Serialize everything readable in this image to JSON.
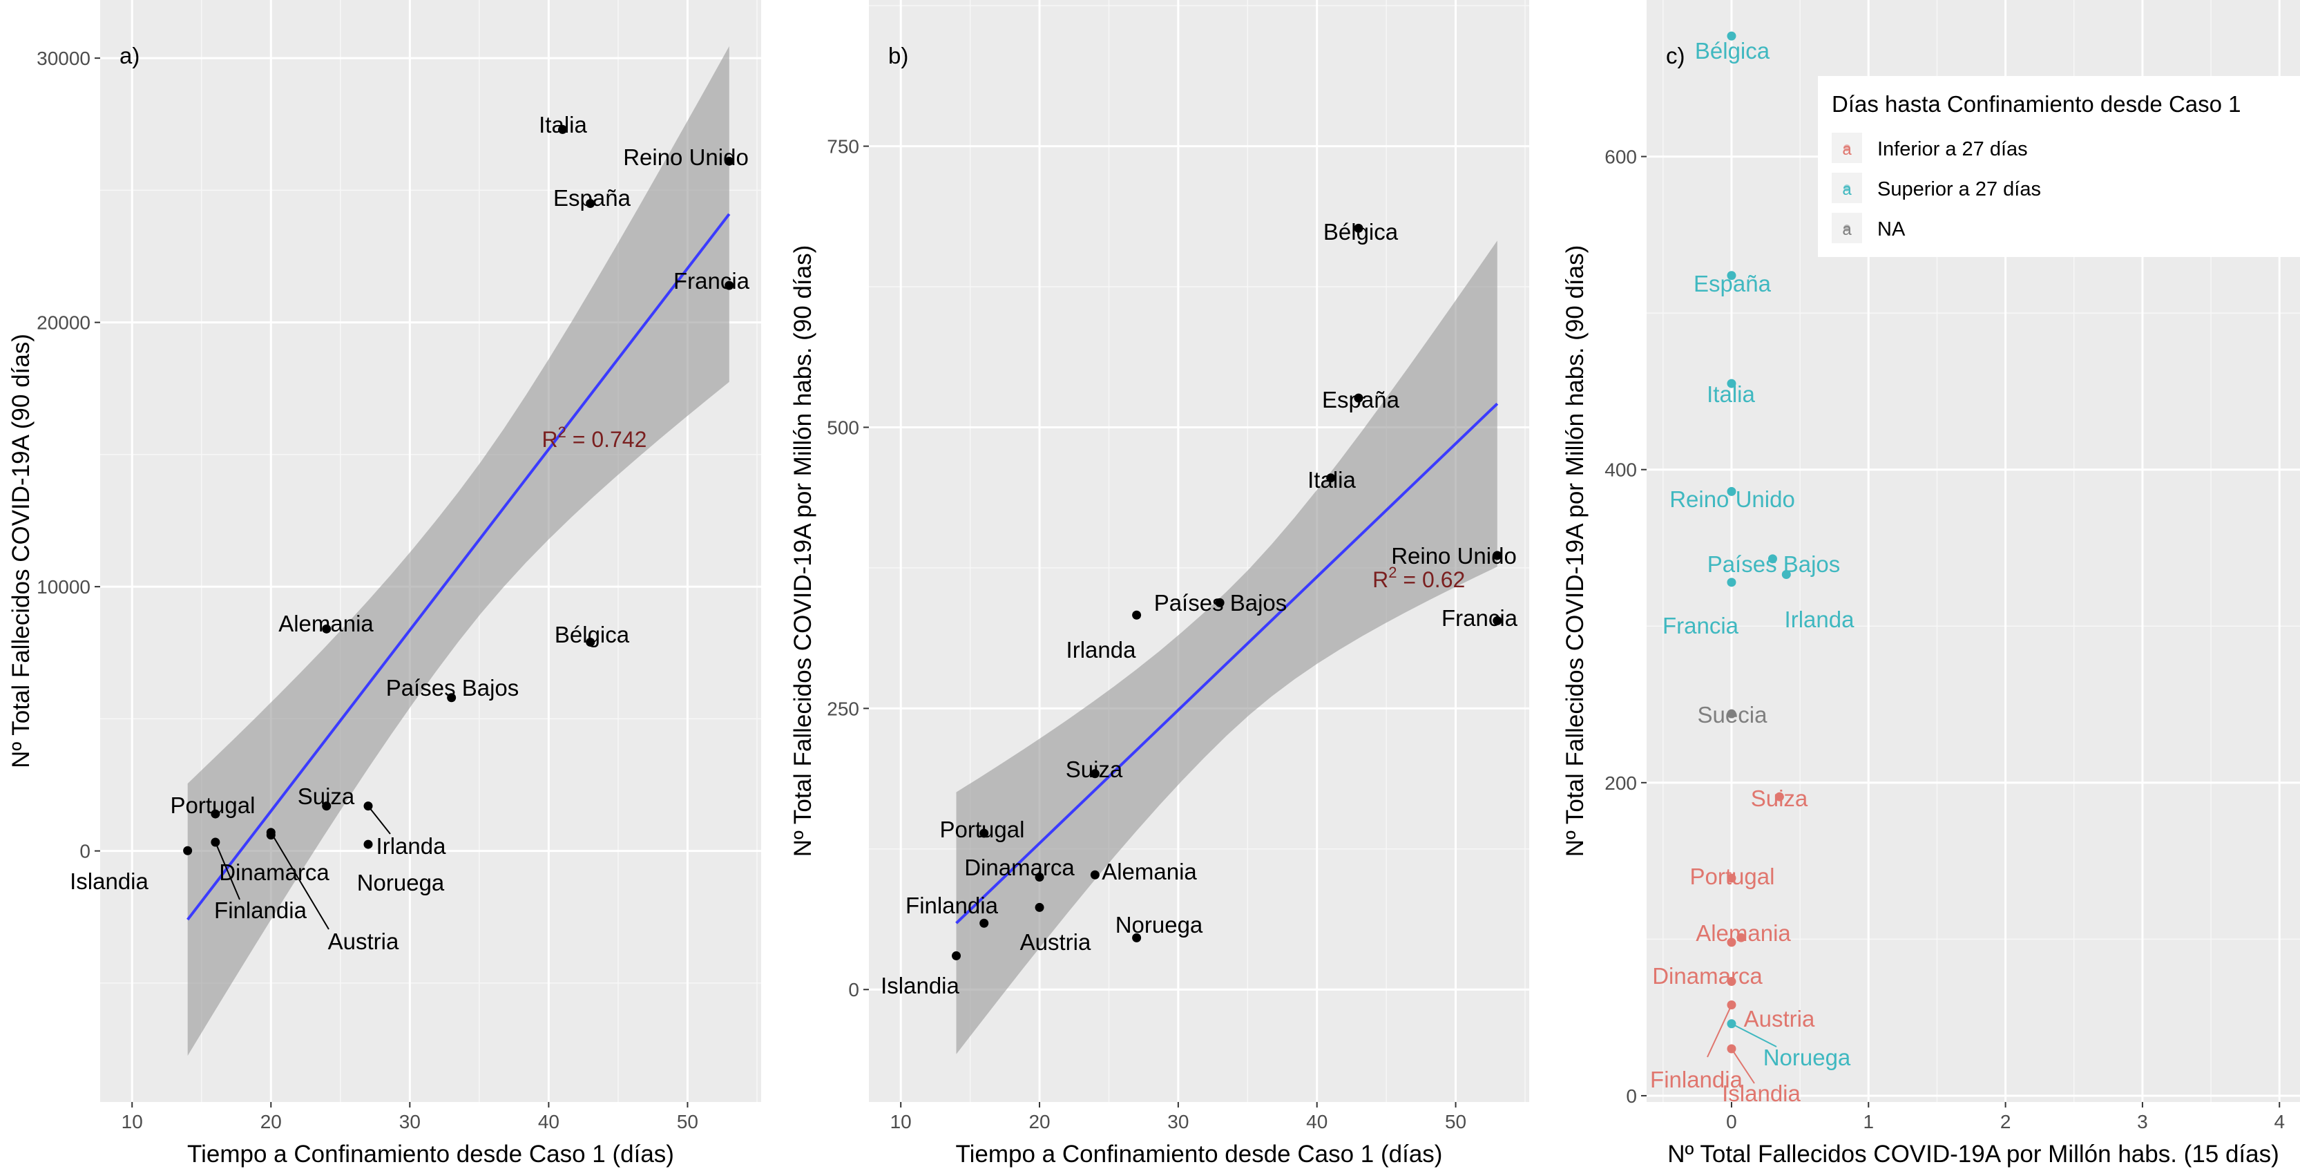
{
  "chart_data": [
    {
      "type": "scatter",
      "panel_label": "a)",
      "xlabel": "Tiempo a Confinamiento desde Caso 1 (días)",
      "ylabel": "Nº Total Fallecidos COVID-19A (90 días)",
      "xlim": [
        7.7,
        55.3
      ],
      "ylim": [
        -9500,
        32200
      ],
      "xticks": [
        10,
        20,
        30,
        40,
        50
      ],
      "yticks": [
        0,
        10000,
        20000,
        30000
      ],
      "ytick_labels": [
        "0",
        "10000",
        "20000",
        "30000"
      ],
      "points": [
        {
          "name": "Italia",
          "x": 41,
          "y": 27300
        },
        {
          "name": "Reino Unido",
          "x": 53,
          "y": 26100
        },
        {
          "name": "España",
          "x": 43,
          "y": 24500
        },
        {
          "name": "Francia",
          "x": 53,
          "y": 21400
        },
        {
          "name": "Alemania",
          "x": 24,
          "y": 8400
        },
        {
          "name": "Bélgica",
          "x": 43,
          "y": 7900
        },
        {
          "name": "Países Bajos",
          "x": 33,
          "y": 5800
        },
        {
          "name": "Portugal",
          "x": 16,
          "y": 1400
        },
        {
          "name": "Suiza",
          "x": 24,
          "y": 1700
        },
        {
          "name": "Irlanda",
          "x": 27,
          "y": 1700
        },
        {
          "name": "Noruega",
          "x": 27,
          "y": 250
        },
        {
          "name": "Islandia",
          "x": 14,
          "y": 10
        },
        {
          "name": "Dinamarca",
          "x": 20,
          "y": 600
        },
        {
          "name": "Finlandia",
          "x": 16,
          "y": 330
        },
        {
          "name": "Austria",
          "x": 20,
          "y": 700
        }
      ],
      "fit": {
        "x": [
          14,
          53
        ],
        "y": [
          -2600,
          24100
        ],
        "ci_low_start": -7800,
        "ci_high_start": 2500,
        "ci_low_end": 17800,
        "ci_high_end": 30500
      },
      "annotation": {
        "base": "R",
        "sup": "2",
        "rest": " = 0.742",
        "x": 41,
        "y": 15600
      }
    },
    {
      "type": "scatter",
      "panel_label": "b)",
      "xlabel": "Tiempo a Confinamiento desde Caso 1 (días)",
      "ylabel": "Nº Total Fallecidos COVID-19A por Millón habs. (90 días)",
      "xlim": [
        7.7,
        55.3
      ],
      "ylim": [
        -100,
        880
      ],
      "xticks": [
        10,
        20,
        30,
        40,
        50
      ],
      "yticks": [
        0,
        250,
        500,
        750
      ],
      "ytick_labels": [
        "0",
        "250",
        "500",
        "750"
      ],
      "points": [
        {
          "name": "Bélgica",
          "x": 43,
          "y": 677
        },
        {
          "name": "España",
          "x": 43,
          "y": 526
        },
        {
          "name": "Italia",
          "x": 41,
          "y": 455
        },
        {
          "name": "Reino Unido",
          "x": 53,
          "y": 386
        },
        {
          "name": "Francia",
          "x": 53,
          "y": 328
        },
        {
          "name": "Países Bajos",
          "x": 33,
          "y": 344
        },
        {
          "name": "Irlanda",
          "x": 27,
          "y": 333
        },
        {
          "name": "Suiza",
          "x": 24,
          "y": 192
        },
        {
          "name": "Portugal",
          "x": 16,
          "y": 139
        },
        {
          "name": "Dinamarca",
          "x": 20,
          "y": 100
        },
        {
          "name": "Alemania",
          "x": 24,
          "y": 102
        },
        {
          "name": "Finlandia",
          "x": 16,
          "y": 59
        },
        {
          "name": "Austria",
          "x": 20,
          "y": 73
        },
        {
          "name": "Noruega",
          "x": 27,
          "y": 46
        },
        {
          "name": "Islandia",
          "x": 14,
          "y": 30
        }
      ],
      "fit": {
        "x": [
          14,
          53
        ],
        "y": [
          59,
          521
        ],
        "ci_low_start": -57,
        "ci_high_start": 176,
        "ci_low_end": 376,
        "ci_high_end": 666
      },
      "annotation": {
        "base": "R",
        "sup": "2",
        "rest": " = 0.62",
        "x": 45.5,
        "y": 365
      }
    },
    {
      "type": "scatter",
      "panel_label": "c)",
      "xlabel": "Nº Total Fallecidos COVID-19A por Millón habs. (15 días)",
      "ylabel": "Nº Total Fallecidos COVID-19A por Millón habs. (90 días)",
      "xlim": [
        -0.62,
        4.15
      ],
      "ylim": [
        -4,
        700
      ],
      "xticks": [
        0,
        1,
        2,
        3,
        4
      ],
      "yticks": [
        0,
        200,
        400,
        600
      ],
      "ytick_labels": [
        "0",
        "200",
        "400",
        "600"
      ],
      "legend_title": "Días hasta Confinamiento desde Caso 1",
      "legend_position": "top-right",
      "legend_key_glyph": "a",
      "legend": [
        {
          "label": "Inferior a 27 días",
          "color": "#E0766E"
        },
        {
          "label": "Superior a 27 días",
          "color": "#3FB8C0"
        },
        {
          "label": "NA",
          "color": "#7F7F7F"
        }
      ],
      "points": [
        {
          "name": "Bélgica",
          "x": 0,
          "y": 677,
          "group": 1
        },
        {
          "name": "España",
          "x": 0,
          "y": 524,
          "group": 1
        },
        {
          "name": "Italia",
          "x": 0,
          "y": 455,
          "group": 1
        },
        {
          "name": "Reino Unido",
          "x": 0,
          "y": 386,
          "group": 1
        },
        {
          "name": "Países Bajos",
          "x": 0.3,
          "y": 343,
          "group": 1
        },
        {
          "name": "Irlanda",
          "x": 0.4,
          "y": 333,
          "group": 1
        },
        {
          "name": "Francia",
          "x": 0,
          "y": 328,
          "group": 1
        },
        {
          "name": "Suecia",
          "x": 0,
          "y": 244,
          "group": 2
        },
        {
          "name": "Suiza",
          "x": 0.35,
          "y": 191,
          "group": 0
        },
        {
          "name": "Portugal",
          "x": 0,
          "y": 139,
          "group": 0
        },
        {
          "name": "Alemania",
          "x": 0.07,
          "y": 101,
          "group": 0
        },
        {
          "name": "Dinamarca",
          "x": 0,
          "y": 98,
          "group": 0
        },
        {
          "name": "Austria",
          "x": 0,
          "y": 73,
          "group": 0
        },
        {
          "name": "Noruega",
          "x": 0,
          "y": 46,
          "group": 1
        },
        {
          "name": "Finlandia",
          "x": 0,
          "y": 58,
          "group": 0
        },
        {
          "name": "Islandia",
          "x": 0,
          "y": 30,
          "group": 0
        }
      ]
    }
  ]
}
